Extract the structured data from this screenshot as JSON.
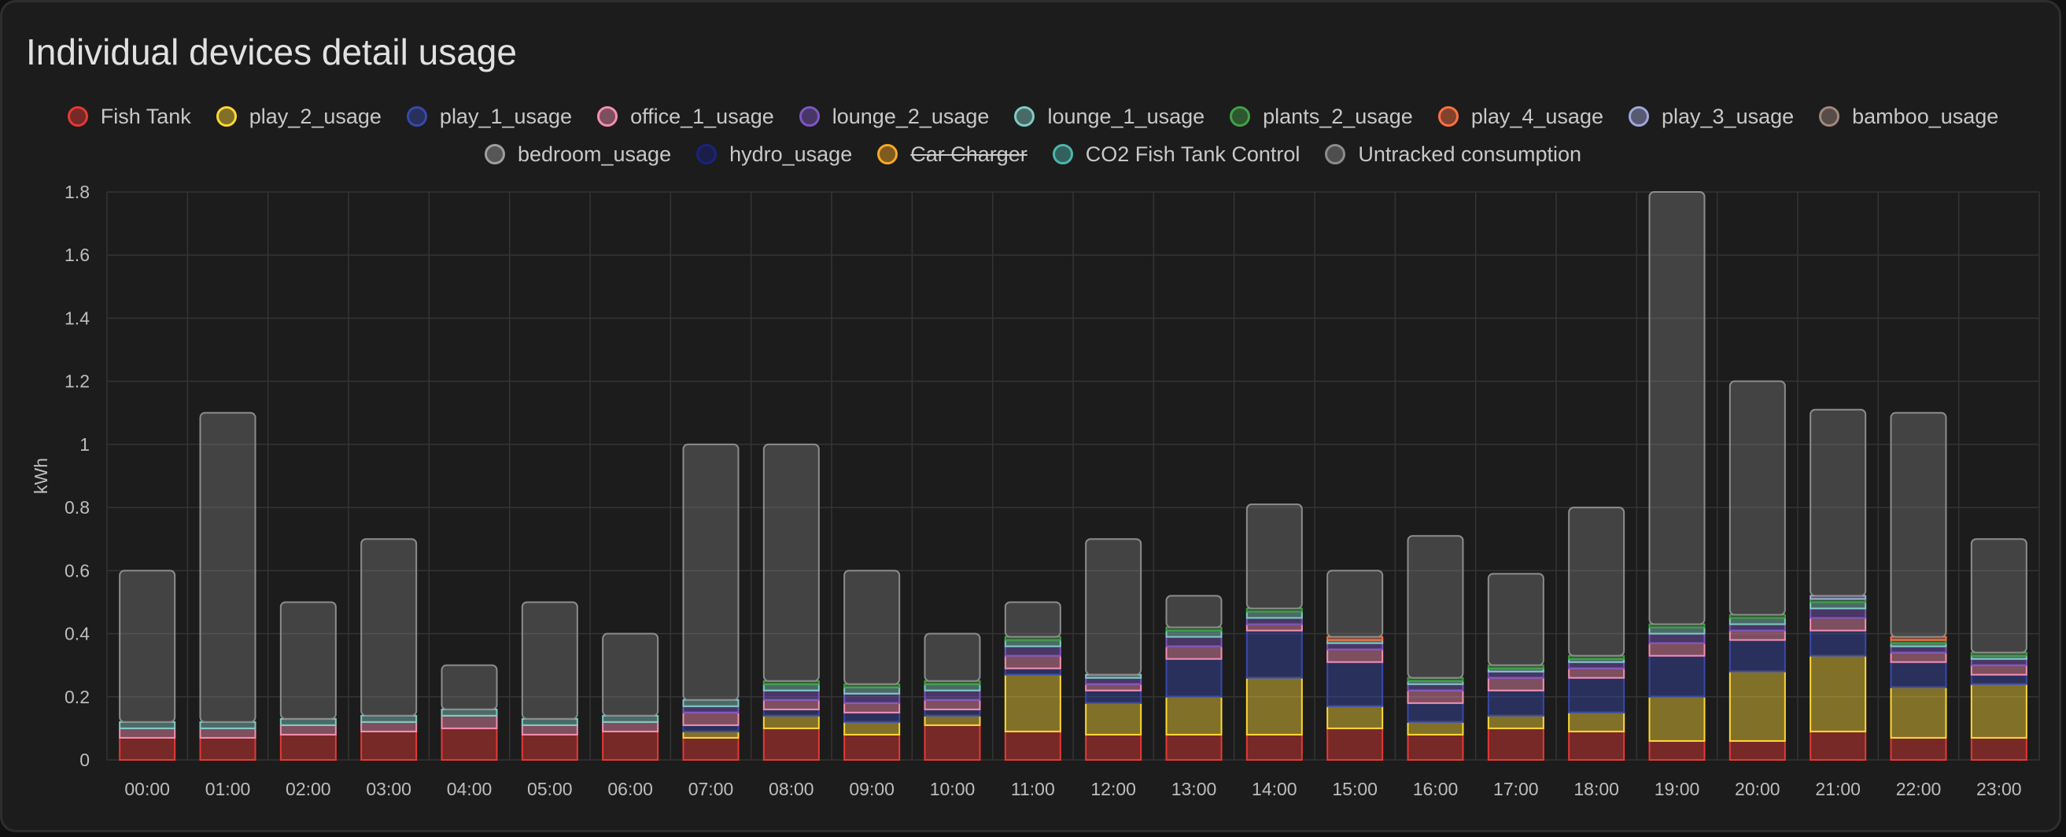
{
  "card": {
    "title": "Individual devices detail usage"
  },
  "chart_data": {
    "type": "bar",
    "stacked": true,
    "ylabel": "kWh",
    "ylim": [
      0,
      1.8
    ],
    "yticks": [
      0,
      0.2,
      0.4,
      0.6,
      0.8,
      1,
      1.2,
      1.4,
      1.6,
      1.8
    ],
    "grid": true,
    "legend_position": "top",
    "categories": [
      "00:00",
      "01:00",
      "02:00",
      "03:00",
      "04:00",
      "05:00",
      "06:00",
      "07:00",
      "08:00",
      "09:00",
      "10:00",
      "11:00",
      "12:00",
      "13:00",
      "14:00",
      "15:00",
      "16:00",
      "17:00",
      "18:00",
      "19:00",
      "20:00",
      "21:00",
      "22:00",
      "23:00"
    ],
    "series": [
      {
        "name": "Fish Tank",
        "color": "#e53935",
        "values": [
          0.07,
          0.07,
          0.08,
          0.09,
          0.1,
          0.08,
          0.09,
          0.07,
          0.1,
          0.08,
          0.11,
          0.09,
          0.08,
          0.08,
          0.08,
          0.1,
          0.08,
          0.1,
          0.09,
          0.06,
          0.06,
          0.09,
          0.07,
          0.07
        ]
      },
      {
        "name": "play_2_usage",
        "color": "#fdd835",
        "values": [
          0,
          0,
          0,
          0,
          0,
          0,
          0,
          0.02,
          0.04,
          0.04,
          0.03,
          0.18,
          0.1,
          0.12,
          0.18,
          0.07,
          0.04,
          0.04,
          0.06,
          0.14,
          0.22,
          0.24,
          0.16,
          0.17
        ]
      },
      {
        "name": "play_1_usage",
        "color": "#3949ab",
        "values": [
          0,
          0,
          0,
          0,
          0,
          0,
          0,
          0.02,
          0.02,
          0.03,
          0.02,
          0.02,
          0.04,
          0.12,
          0.15,
          0.14,
          0.06,
          0.08,
          0.11,
          0.13,
          0.1,
          0.08,
          0.08,
          0.03
        ]
      },
      {
        "name": "office_1_usage",
        "color": "#f48fb1",
        "values": [
          0.03,
          0.03,
          0.03,
          0.03,
          0.04,
          0.03,
          0.03,
          0.04,
          0.03,
          0.03,
          0.03,
          0.04,
          0.02,
          0.04,
          0.02,
          0.04,
          0.04,
          0.04,
          0.03,
          0.04,
          0.03,
          0.04,
          0.03,
          0.03
        ]
      },
      {
        "name": "lounge_2_usage",
        "color": "#7e57c2",
        "values": [
          0,
          0,
          0,
          0,
          0,
          0,
          0,
          0.02,
          0.03,
          0.03,
          0.03,
          0.03,
          0.02,
          0.03,
          0.02,
          0.02,
          0.02,
          0.02,
          0.02,
          0.03,
          0.02,
          0.03,
          0.02,
          0.02
        ]
      },
      {
        "name": "lounge_1_usage",
        "color": "#80cbc4",
        "values": [
          0.02,
          0.02,
          0.02,
          0.02,
          0.02,
          0.02,
          0.02,
          0.02,
          0.02,
          0.02,
          0.02,
          0.02,
          0.01,
          0.02,
          0.02,
          0.01,
          0.01,
          0.01,
          0.01,
          0.02,
          0.02,
          0.02,
          0.01,
          0.01
        ]
      },
      {
        "name": "plants_2_usage",
        "color": "#43a047",
        "values": [
          0,
          0,
          0,
          0,
          0,
          0,
          0,
          0,
          0.01,
          0.01,
          0.01,
          0.01,
          0,
          0.01,
          0.01,
          0,
          0.01,
          0.01,
          0.01,
          0.01,
          0.01,
          0.01,
          0.01,
          0.01
        ]
      },
      {
        "name": "play_4_usage",
        "color": "#ff7043",
        "values": [
          0,
          0,
          0,
          0,
          0,
          0,
          0,
          0,
          0,
          0,
          0,
          0,
          0,
          0,
          0,
          0.01,
          0,
          0,
          0,
          0,
          0,
          0,
          0.01,
          0
        ]
      },
      {
        "name": "play_3_usage",
        "color": "#9fa8da",
        "values": [
          0,
          0,
          0,
          0,
          0,
          0,
          0,
          0,
          0,
          0,
          0,
          0,
          0,
          0,
          0,
          0,
          0,
          0,
          0,
          0,
          0,
          0.01,
          0,
          0
        ]
      },
      {
        "name": "bamboo_usage",
        "color": "#a1887f",
        "values": [
          0,
          0,
          0,
          0,
          0,
          0,
          0,
          0,
          0,
          0,
          0,
          0,
          0,
          0,
          0,
          0,
          0,
          0,
          0,
          0,
          0,
          0,
          0,
          0
        ]
      },
      {
        "name": "bedroom_usage",
        "color": "#9e9e9e",
        "values": [
          0,
          0,
          0,
          0,
          0,
          0,
          0,
          0,
          0,
          0,
          0,
          0,
          0,
          0,
          0,
          0,
          0,
          0,
          0,
          0,
          0,
          0,
          0,
          0
        ]
      },
      {
        "name": "hydro_usage",
        "color": "#1a237e",
        "values": [
          0,
          0,
          0,
          0,
          0,
          0,
          0,
          0,
          0,
          0,
          0,
          0,
          0,
          0,
          0,
          0,
          0,
          0,
          0,
          0,
          0,
          0,
          0,
          0
        ]
      },
      {
        "name": "Car Charger",
        "color": "#f9a825",
        "hidden": true,
        "values": [
          0,
          0,
          0,
          0,
          0,
          0,
          0,
          0,
          0,
          0,
          0,
          0,
          0,
          0,
          0,
          0,
          0,
          0,
          0,
          0,
          0,
          0,
          0,
          0
        ]
      },
      {
        "name": "CO2 Fish Tank Control",
        "color": "#4db6ac",
        "values": [
          0,
          0,
          0,
          0,
          0,
          0,
          0,
          0,
          0,
          0,
          0,
          0,
          0,
          0,
          0,
          0,
          0,
          0,
          0,
          0,
          0,
          0,
          0,
          0
        ]
      },
      {
        "name": "Untracked consumption",
        "color": "#8c8c8c",
        "values": [
          0.48,
          0.98,
          0.37,
          0.56,
          0.14,
          0.37,
          0.26,
          0.81,
          0.75,
          0.36,
          0.15,
          0.11,
          0.43,
          0.1,
          0.33,
          0.21,
          0.45,
          0.29,
          0.47,
          1.37,
          0.74,
          0.59,
          0.71,
          0.36
        ]
      }
    ]
  }
}
